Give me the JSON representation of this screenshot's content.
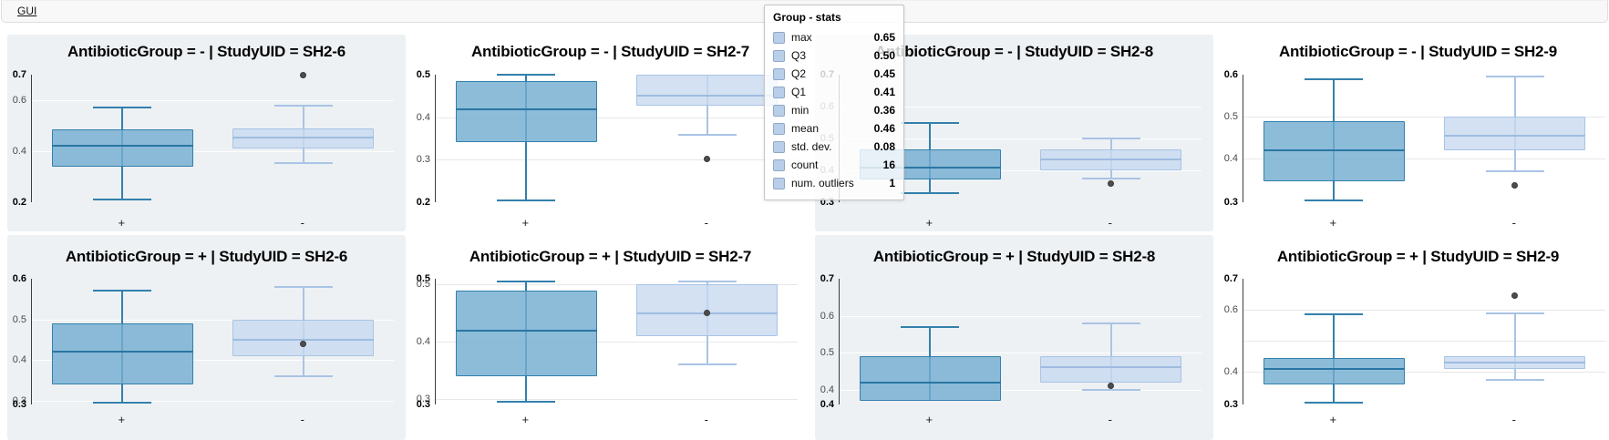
{
  "toolbar": {
    "gui_label": "GUI"
  },
  "colors": {
    "plus_fill": "rgba(116,173,209,0.82)",
    "plus_border": "#3380ac",
    "plus_median": "#2a76a3",
    "minus_fill": "rgba(199,216,240,0.78)",
    "minus_border": "#a9c4e4",
    "minus_median": "#9fbce0",
    "outlier": "#4d4d4d",
    "panel_gray": "#edf1f4",
    "axis": "#3d3d3d"
  },
  "x_categories": [
    "+",
    "-"
  ],
  "tooltip": {
    "title": "Group - stats",
    "rows": [
      {
        "label": "max",
        "value": "0.65"
      },
      {
        "label": "Q3",
        "value": "0.50"
      },
      {
        "label": "Q2",
        "value": "0.45"
      },
      {
        "label": "Q1",
        "value": "0.41"
      },
      {
        "label": "min",
        "value": "0.36"
      },
      {
        "label": "mean",
        "value": "0.46"
      },
      {
        "label": "std. dev.",
        "value": "0.08"
      },
      {
        "label": "count",
        "value": "16"
      },
      {
        "label": "num. outliers",
        "value": "1"
      }
    ]
  },
  "chart_data": {
    "type": "box",
    "facet_note": "2 rows (AntibioticGroup - / +) x 4 columns (StudyUID SH2-6..SH2-9), x axis categories + and -",
    "panels": [
      {
        "title": "AntibioticGroup = - | StudyUID = SH2-6",
        "bg": "gray",
        "ylim": [
          0.2,
          0.7
        ],
        "yticks": [
          {
            "v": 0.7,
            "label": "0.7",
            "bold": true
          },
          {
            "v": 0.6,
            "label": "0.6"
          },
          {
            "v": 0.4,
            "label": "0.4"
          },
          {
            "v": 0.2,
            "label": "0.2",
            "bold": true
          }
        ],
        "boxes": [
          {
            "group": "+",
            "low": 0.21,
            "q1": 0.34,
            "median": 0.42,
            "q3": 0.485,
            "high": 0.57,
            "outliers": []
          },
          {
            "group": "-",
            "low": 0.355,
            "q1": 0.41,
            "median": 0.455,
            "q3": 0.49,
            "high": 0.58,
            "outliers": [
              0.7
            ]
          }
        ]
      },
      {
        "title": "AntibioticGroup = - | StudyUID = SH2-7",
        "bg": "white",
        "ylim": [
          0.195,
          0.505
        ],
        "yticks": [
          {
            "v": 0.505,
            "label": "0.5",
            "bold": true
          },
          {
            "v": 0.4,
            "label": "0.4"
          },
          {
            "v": 0.3,
            "label": "0.3"
          },
          {
            "v": 0.195,
            "label": "0.2",
            "bold": true
          }
        ],
        "boxes": [
          {
            "group": "+",
            "low": 0.2,
            "q1": 0.34,
            "median": 0.42,
            "q3": 0.49,
            "high": 0.505,
            "outliers": []
          },
          {
            "group": "-",
            "low": 0.36,
            "q1": 0.43,
            "median": 0.455,
            "q3": 0.505,
            "high": 0.505,
            "outliers": [
              0.3
            ]
          }
        ]
      },
      {
        "title": "AntibioticGroup = - | StudyUID = SH2-8",
        "bg": "gray",
        "ylim": [
          0.3,
          0.7
        ],
        "yticks": [
          {
            "v": 0.7,
            "label": "0.7",
            "bold": true
          },
          {
            "v": 0.6,
            "label": "0.6"
          },
          {
            "v": 0.5,
            "label": "0.5"
          },
          {
            "v": 0.4,
            "label": "0.4"
          },
          {
            "v": 0.3,
            "label": "0.3",
            "bold": true
          }
        ],
        "boxes": [
          {
            "group": "+",
            "low": 0.33,
            "q1": 0.37,
            "median": 0.41,
            "q3": 0.465,
            "high": 0.55,
            "outliers": []
          },
          {
            "group": "-",
            "low": 0.375,
            "q1": 0.4,
            "median": 0.435,
            "q3": 0.465,
            "high": 0.5,
            "outliers": [
              0.36
            ]
          }
        ]
      },
      {
        "title": "AntibioticGroup = - | StudyUID = SH2-9",
        "bg": "white",
        "ylim": [
          0.295,
          0.6
        ],
        "yticks": [
          {
            "v": 0.6,
            "label": "0.6",
            "bold": true
          },
          {
            "v": 0.5,
            "label": "0.5"
          },
          {
            "v": 0.4,
            "label": "0.4"
          },
          {
            "v": 0.295,
            "label": "0.3",
            "bold": true
          }
        ],
        "boxes": [
          {
            "group": "+",
            "low": 0.3,
            "q1": 0.345,
            "median": 0.42,
            "q3": 0.49,
            "high": 0.59,
            "outliers": []
          },
          {
            "group": "-",
            "low": 0.37,
            "q1": 0.42,
            "median": 0.455,
            "q3": 0.5,
            "high": 0.595,
            "outliers": [
              0.335
            ]
          }
        ]
      },
      {
        "title": "AntibioticGroup = + | StudyUID = SH2-6",
        "bg": "gray",
        "ylim": [
          0.29,
          0.6
        ],
        "yticks": [
          {
            "v": 0.6,
            "label": "0.6",
            "bold": true
          },
          {
            "v": 0.5,
            "label": "0.5"
          },
          {
            "v": 0.4,
            "label": "0.4"
          },
          {
            "v": 0.3,
            "label": "0.3"
          },
          {
            "v": 0.29,
            "label": "0.3",
            "bold": true
          }
        ],
        "boxes": [
          {
            "group": "+",
            "low": 0.295,
            "q1": 0.34,
            "median": 0.42,
            "q3": 0.49,
            "high": 0.57,
            "outliers": []
          },
          {
            "group": "-",
            "low": 0.36,
            "q1": 0.41,
            "median": 0.45,
            "q3": 0.5,
            "high": 0.58,
            "outliers": [
              0.44
            ]
          }
        ]
      },
      {
        "title": "AntibioticGroup = + | StudyUID = SH2-7",
        "bg": "white",
        "ylim": [
          0.29,
          0.51
        ],
        "yticks": [
          {
            "v": 0.51,
            "label": "0.5",
            "bold": true
          },
          {
            "v": 0.5,
            "label": "0.5"
          },
          {
            "v": 0.4,
            "label": "0.4"
          },
          {
            "v": 0.3,
            "label": "0.3"
          },
          {
            "v": 0.29,
            "label": "0.3",
            "bold": true
          }
        ],
        "boxes": [
          {
            "group": "+",
            "low": 0.295,
            "q1": 0.34,
            "median": 0.42,
            "q3": 0.49,
            "high": 0.505,
            "outliers": []
          },
          {
            "group": "-",
            "low": 0.36,
            "q1": 0.41,
            "median": 0.45,
            "q3": 0.5,
            "high": 0.505,
            "outliers": [
              0.45
            ]
          }
        ]
      },
      {
        "title": "AntibioticGroup = + | StudyUID = SH2-8",
        "bg": "gray",
        "ylim": [
          0.36,
          0.7
        ],
        "yticks": [
          {
            "v": 0.7,
            "label": "0.7",
            "bold": true
          },
          {
            "v": 0.6,
            "label": "0.6"
          },
          {
            "v": 0.5,
            "label": "0.5"
          },
          {
            "v": 0.4,
            "label": "0.4"
          },
          {
            "v": 0.36,
            "label": "0.4",
            "bold": true
          }
        ],
        "boxes": [
          {
            "group": "+",
            "low": 0.37,
            "q1": 0.37,
            "median": 0.42,
            "q3": 0.49,
            "high": 0.57,
            "outliers": []
          },
          {
            "group": "-",
            "low": 0.4,
            "q1": 0.42,
            "median": 0.46,
            "q3": 0.49,
            "high": 0.58,
            "outliers": [
              0.41
            ]
          }
        ]
      },
      {
        "title": "AntibioticGroup = + | StudyUID = SH2-9",
        "bg": "white",
        "ylim": [
          0.295,
          0.7
        ],
        "yticks": [
          {
            "v": 0.7,
            "label": "0.7",
            "bold": true
          },
          {
            "v": 0.6,
            "label": "0.6"
          },
          {
            "v": 0.5,
            "label": ""
          },
          {
            "v": 0.4,
            "label": "0.4"
          },
          {
            "v": 0.295,
            "label": "0.3",
            "bold": true
          }
        ],
        "boxes": [
          {
            "group": "+",
            "low": 0.3,
            "q1": 0.36,
            "median": 0.41,
            "q3": 0.445,
            "high": 0.585,
            "outliers": []
          },
          {
            "group": "-",
            "low": 0.375,
            "q1": 0.41,
            "median": 0.43,
            "q3": 0.45,
            "high": 0.59,
            "outliers": [
              0.645
            ]
          }
        ]
      }
    ]
  }
}
